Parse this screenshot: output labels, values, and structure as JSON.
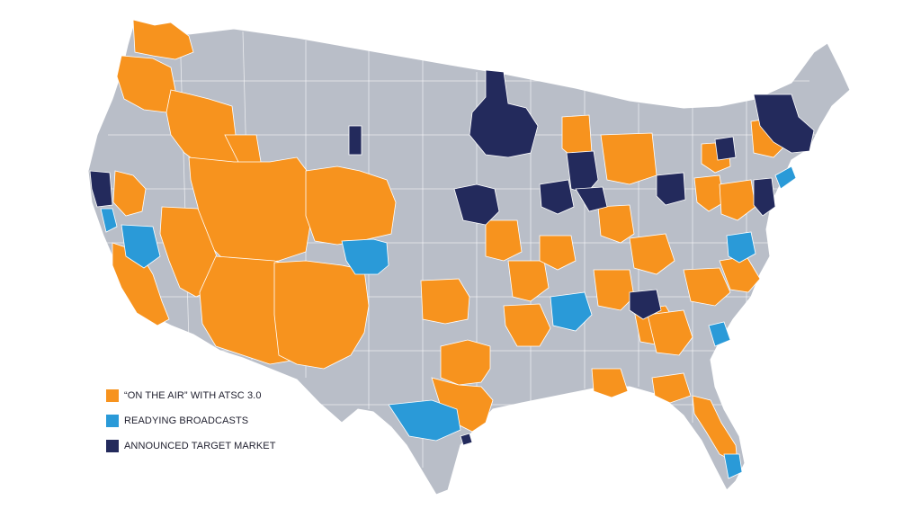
{
  "colors": {
    "background": "#ffffff",
    "base_land": "#b9bec8",
    "border": "#ffffff",
    "on_the_air": "#f7931e",
    "readying": "#2a9ad8",
    "target": "#232a5c"
  },
  "legend": {
    "items": [
      {
        "label": "“ON THE AIR” WITH ATSC 3.0",
        "color": "#f7931e",
        "icon": "orange-square"
      },
      {
        "label": "READYING BROADCASTS",
        "color": "#2a9ad8",
        "icon": "blue-square"
      },
      {
        "label": "ANNOUNCED TARGET MARKET",
        "color": "#232a5c",
        "icon": "navy-square"
      }
    ]
  }
}
